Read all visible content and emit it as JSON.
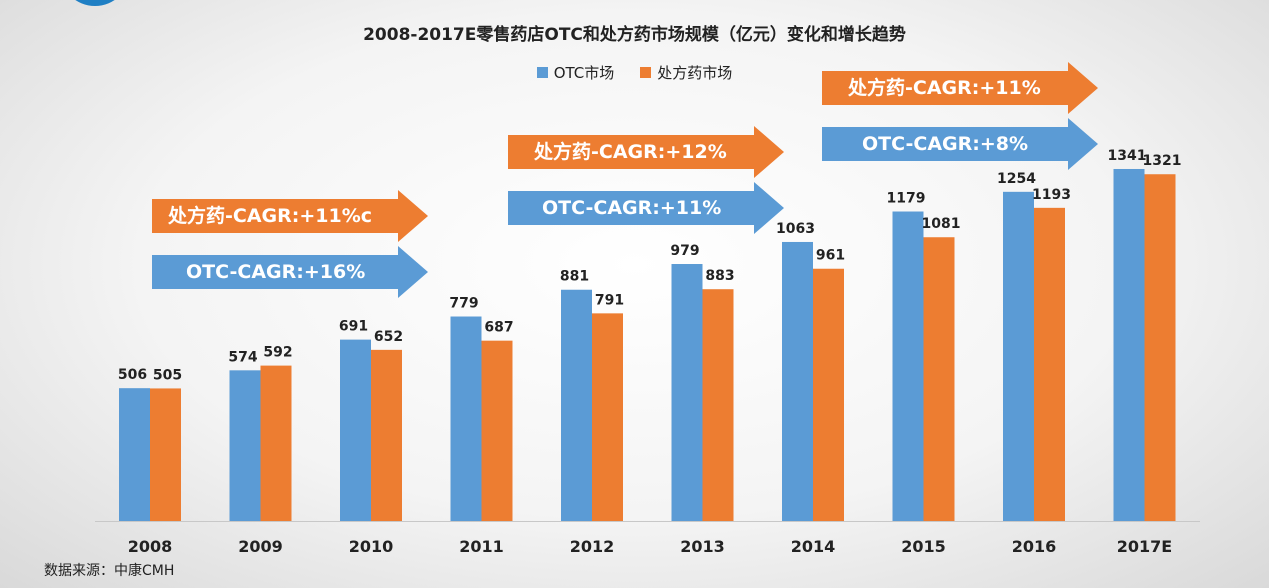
{
  "colors": {
    "otc": "#5b9bd5",
    "rx": "#ed7d31"
  },
  "chart_data": {
    "type": "bar",
    "title": "2008-2017E零售药店OTC和处方药市场规模（亿元）变化和增长趋势",
    "xlabel": "",
    "ylabel": "",
    "ylim": [
      0,
      1450
    ],
    "grid": false,
    "legend_position": "top-center",
    "categories": [
      "2008",
      "2009",
      "2010",
      "2011",
      "2012",
      "2013",
      "2014",
      "2015",
      "2016",
      "2017E"
    ],
    "series": [
      {
        "name": "OTC市场",
        "values": [
          506,
          574,
          691,
          779,
          881,
          979,
          1063,
          1179,
          1254,
          1341
        ]
      },
      {
        "name": "处方药市场",
        "values": [
          505,
          592,
          652,
          687,
          791,
          883,
          961,
          1081,
          1193,
          1321
        ]
      }
    ],
    "annotations": [
      {
        "text": "处方药-CAGR:+11%c",
        "color": "rx",
        "span": [
          "2008",
          "2011"
        ]
      },
      {
        "text": "OTC-CAGR:+16%",
        "color": "otc",
        "span": [
          "2008",
          "2011"
        ]
      },
      {
        "text": "处方药-CAGR:+12%",
        "color": "rx",
        "span": [
          "2011",
          "2014"
        ]
      },
      {
        "text": "OTC-CAGR:+11%",
        "color": "otc",
        "span": [
          "2011",
          "2014"
        ]
      },
      {
        "text": "处方药-CAGR:+11%",
        "color": "rx",
        "span": [
          "2014",
          "2017E"
        ]
      },
      {
        "text": "OTC-CAGR:+8%",
        "color": "otc",
        "span": [
          "2014",
          "2017E"
        ]
      }
    ]
  },
  "source": "数据来源：中康CMH"
}
